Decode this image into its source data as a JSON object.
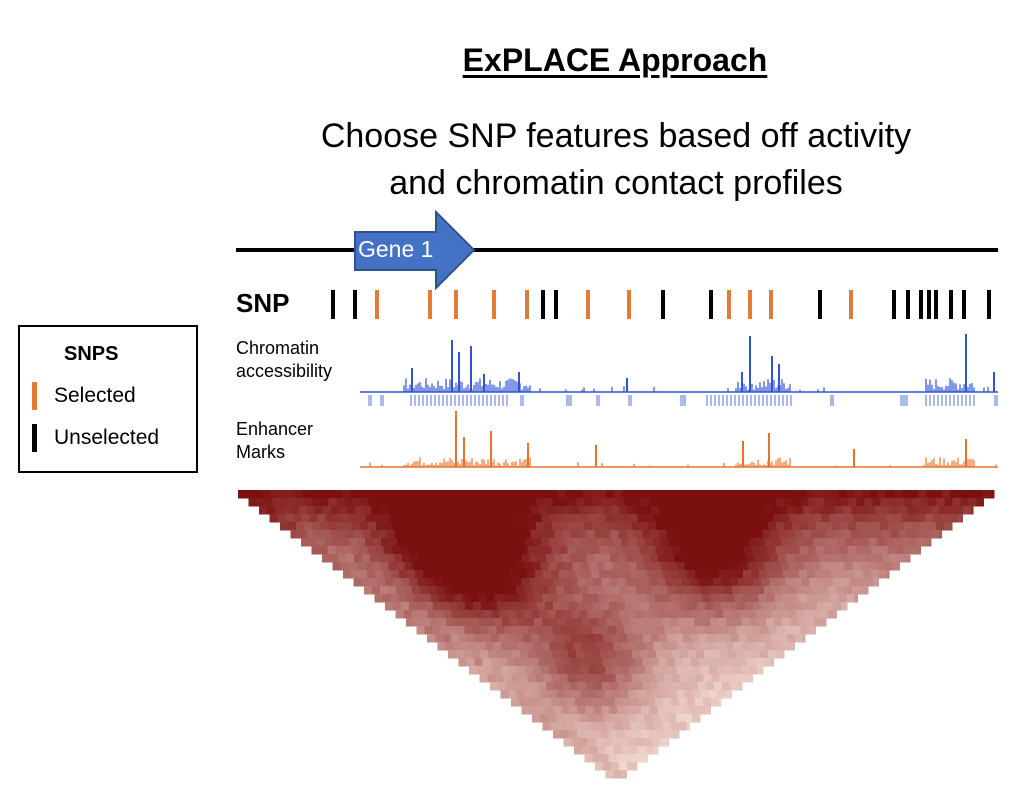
{
  "title": "ExPLACE Approach",
  "subtitle_line1": "Choose SNP features based off activity",
  "subtitle_line2": "and chromatin contact profiles",
  "gene_label": "Gene 1",
  "snp_track_label": "SNP",
  "legend": {
    "title": "SNPS",
    "items": [
      {
        "label": "Selected",
        "color": "#e07b3c"
      },
      {
        "label": "Unselected",
        "color": "#000000"
      }
    ]
  },
  "tracks": [
    {
      "label_line1": "Chromatin",
      "label_line2": "accessibility",
      "color": "#2f54d6",
      "peak_color": "#aab9f0"
    },
    {
      "label_line1": "Enhancer",
      "label_line2": "Marks",
      "color": "#e8742c"
    }
  ],
  "colors": {
    "selected": "#e07b3c",
    "unselected": "#000000",
    "gene_arrow": "#4472c4",
    "hic_low": "#fbe8df",
    "hic_high": "#7a1010"
  }
}
